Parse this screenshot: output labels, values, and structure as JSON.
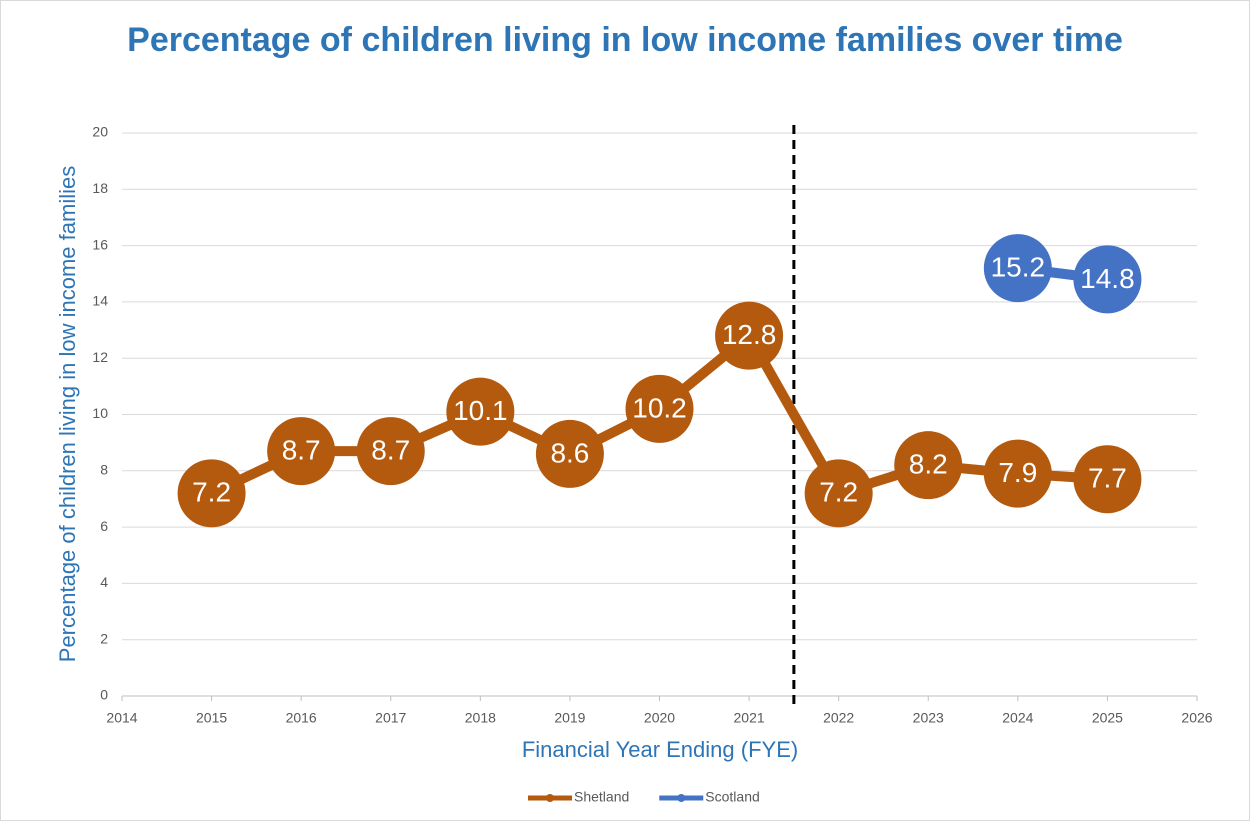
{
  "chart_data": {
    "type": "line",
    "title": "Percentage of children living in low income families over time",
    "x_label": "Financial Year Ending (FYE)",
    "y_label": "Percentage of children living in low income families",
    "xlim": [
      2014,
      2026
    ],
    "xticks": [
      2014,
      2015,
      2016,
      2017,
      2018,
      2019,
      2020,
      2021,
      2022,
      2023,
      2024,
      2025,
      2026
    ],
    "ylim": [
      0,
      20
    ],
    "yticks": [
      0,
      2,
      4,
      6,
      8,
      10,
      12,
      14,
      16,
      18,
      20
    ],
    "grid": true,
    "legend": "bottom",
    "reference_line": {
      "x": 2021.5,
      "style": "dashed",
      "color": "#000000"
    },
    "series": [
      {
        "name": "Shetland",
        "color": "#b35a0e",
        "x": [
          2015,
          2016,
          2017,
          2018,
          2019,
          2020,
          2021,
          2022,
          2023,
          2024,
          2025
        ],
        "values": [
          7.2,
          8.7,
          8.7,
          10.1,
          8.6,
          10.2,
          12.8,
          7.2,
          8.2,
          7.9,
          7.7
        ]
      },
      {
        "name": "Scotland",
        "color": "#4472c4",
        "x": [
          2024,
          2025
        ],
        "values": [
          15.2,
          14.8
        ]
      }
    ]
  }
}
